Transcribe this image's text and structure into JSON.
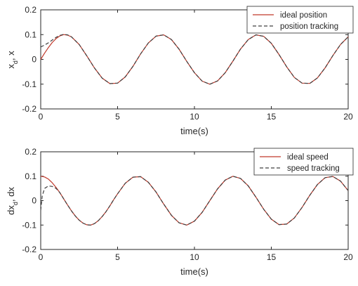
{
  "chart_data": [
    {
      "type": "line",
      "xlabel": "time(s)",
      "ylabel": "x_d, x",
      "ylabel_main": "x",
      "ylabel_sub": "d",
      "ylabel_tail": ", x",
      "xlim": [
        0,
        20
      ],
      "ylim": [
        -0.2,
        0.2
      ],
      "xticks": [
        0,
        5,
        10,
        15,
        20
      ],
      "yticks": [
        -0.2,
        -0.1,
        0,
        0.1,
        0.2
      ],
      "xtick_labels": [
        "0",
        "5",
        "10",
        "15",
        "20"
      ],
      "ytick_labels": [
        "-0.2",
        "-0.1",
        "0",
        "0.1",
        "0.2"
      ],
      "legend_position": "top-right",
      "grid": false,
      "series": [
        {
          "name": "ideal position",
          "color": "#c0392b",
          "style": "solid",
          "x": [
            0,
            0.25,
            0.5,
            0.75,
            1,
            1.25,
            1.5,
            1.75,
            2,
            2.5,
            3,
            3.5,
            4,
            4.5,
            5,
            5.5,
            6,
            6.5,
            7,
            7.5,
            8,
            8.5,
            9,
            9.5,
            10,
            10.5,
            11,
            11.5,
            12,
            12.5,
            13,
            13.5,
            14,
            14.5,
            15,
            15.5,
            16,
            16.5,
            17,
            17.5,
            18,
            18.5,
            19,
            19.5,
            20
          ],
          "y": [
            0,
            0.025,
            0.048,
            0.068,
            0.084,
            0.095,
            0.1,
            0.098,
            0.091,
            0.06,
            0.014,
            -0.035,
            -0.076,
            -0.098,
            -0.096,
            -0.071,
            -0.028,
            0.022,
            0.066,
            0.094,
            0.099,
            0.08,
            0.041,
            -0.008,
            -0.054,
            -0.088,
            -0.1,
            -0.087,
            -0.054,
            -0.007,
            0.042,
            0.08,
            0.099,
            0.093,
            0.065,
            0.02,
            -0.03,
            -0.073,
            -0.096,
            -0.097,
            -0.075,
            -0.034,
            0.015,
            0.06,
            0.091
          ]
        },
        {
          "name": "position tracking",
          "color": "#404040",
          "style": "dashed",
          "x": [
            0,
            0.25,
            0.5,
            0.75,
            1,
            1.25,
            1.5,
            1.75,
            2,
            2.5,
            3,
            3.5,
            4,
            4.5,
            5,
            5.5,
            6,
            6.5,
            7,
            7.5,
            8,
            8.5,
            9,
            9.5,
            10,
            10.5,
            11,
            11.5,
            12,
            12.5,
            13,
            13.5,
            14,
            14.5,
            15,
            15.5,
            16,
            16.5,
            17,
            17.5,
            18,
            18.5,
            19,
            19.5,
            20
          ],
          "y": [
            0.05,
            0.058,
            0.067,
            0.078,
            0.089,
            0.097,
            0.101,
            0.099,
            0.091,
            0.06,
            0.014,
            -0.035,
            -0.076,
            -0.098,
            -0.096,
            -0.071,
            -0.028,
            0.022,
            0.066,
            0.094,
            0.099,
            0.08,
            0.041,
            -0.008,
            -0.054,
            -0.088,
            -0.1,
            -0.087,
            -0.054,
            -0.007,
            0.042,
            0.08,
            0.099,
            0.093,
            0.065,
            0.02,
            -0.03,
            -0.073,
            -0.096,
            -0.097,
            -0.075,
            -0.034,
            0.015,
            0.06,
            0.091
          ]
        }
      ]
    },
    {
      "type": "line",
      "xlabel": "time(s)",
      "ylabel": "dx_d, dx",
      "ylabel_main": "dx",
      "ylabel_sub": "d",
      "ylabel_tail": ", dx",
      "xlim": [
        0,
        20
      ],
      "ylim": [
        -0.2,
        0.2
      ],
      "xticks": [
        0,
        5,
        10,
        15,
        20
      ],
      "yticks": [
        -0.2,
        -0.1,
        0,
        0.1,
        0.2
      ],
      "xtick_labels": [
        "0",
        "5",
        "10",
        "15",
        "20"
      ],
      "ytick_labels": [
        "-0.2",
        "-0.1",
        "0",
        "0.1",
        "0.2"
      ],
      "legend_position": "top-right",
      "grid": false,
      "series": [
        {
          "name": "ideal speed",
          "color": "#c0392b",
          "style": "solid",
          "x": [
            0,
            0.25,
            0.5,
            0.75,
            1,
            1.25,
            1.5,
            1.75,
            2,
            2.25,
            2.5,
            2.75,
            3,
            3.25,
            3.5,
            3.75,
            4,
            4.25,
            4.5,
            4.75,
            5,
            5.5,
            6,
            6.5,
            7,
            7.5,
            8,
            8.5,
            9,
            9.5,
            10,
            10.5,
            11,
            11.5,
            12,
            12.5,
            13,
            13.5,
            14,
            14.5,
            15,
            15.5,
            16,
            16.5,
            17,
            17.5,
            18,
            18.5,
            19,
            19.5,
            20
          ],
          "y": [
            0.1,
            0.097,
            0.088,
            0.073,
            0.054,
            0.032,
            0.007,
            -0.018,
            -0.042,
            -0.063,
            -0.08,
            -0.092,
            -0.099,
            -0.1,
            -0.094,
            -0.082,
            -0.065,
            -0.045,
            -0.021,
            0.004,
            0.028,
            0.071,
            0.096,
            0.098,
            0.075,
            0.035,
            -0.014,
            -0.06,
            -0.091,
            -0.1,
            -0.084,
            -0.048,
            0,
            0.048,
            0.084,
            0.1,
            0.091,
            0.06,
            0.014,
            -0.035,
            -0.076,
            -0.098,
            -0.096,
            -0.071,
            -0.028,
            0.022,
            0.066,
            0.094,
            0.099,
            0.08,
            0.041
          ]
        },
        {
          "name": "speed tracking",
          "color": "#404040",
          "style": "dashed",
          "x": [
            0,
            0.1,
            0.25,
            0.5,
            0.75,
            1,
            1.25,
            1.5,
            1.75,
            2,
            2.25,
            2.5,
            2.75,
            3,
            3.25,
            3.5,
            3.75,
            4,
            4.25,
            4.5,
            4.75,
            5,
            5.5,
            6,
            6.5,
            7,
            7.5,
            8,
            8.5,
            9,
            9.5,
            10,
            10.5,
            11,
            11.5,
            12,
            12.5,
            13,
            13.5,
            14,
            14.5,
            15,
            15.5,
            16,
            16.5,
            17,
            17.5,
            18,
            18.5,
            19,
            19.5,
            20
          ],
          "y": [
            -0.04,
            0.02,
            0.05,
            0.06,
            0.058,
            0.05,
            0.032,
            0.007,
            -0.018,
            -0.042,
            -0.063,
            -0.08,
            -0.092,
            -0.099,
            -0.1,
            -0.094,
            -0.082,
            -0.065,
            -0.045,
            -0.021,
            0.004,
            0.028,
            0.071,
            0.096,
            0.098,
            0.075,
            0.035,
            -0.014,
            -0.06,
            -0.091,
            -0.1,
            -0.084,
            -0.048,
            0,
            0.048,
            0.084,
            0.1,
            0.091,
            0.06,
            0.014,
            -0.035,
            -0.076,
            -0.098,
            -0.096,
            -0.071,
            -0.028,
            0.022,
            0.066,
            0.094,
            0.099,
            0.08,
            0.041
          ]
        }
      ]
    }
  ]
}
